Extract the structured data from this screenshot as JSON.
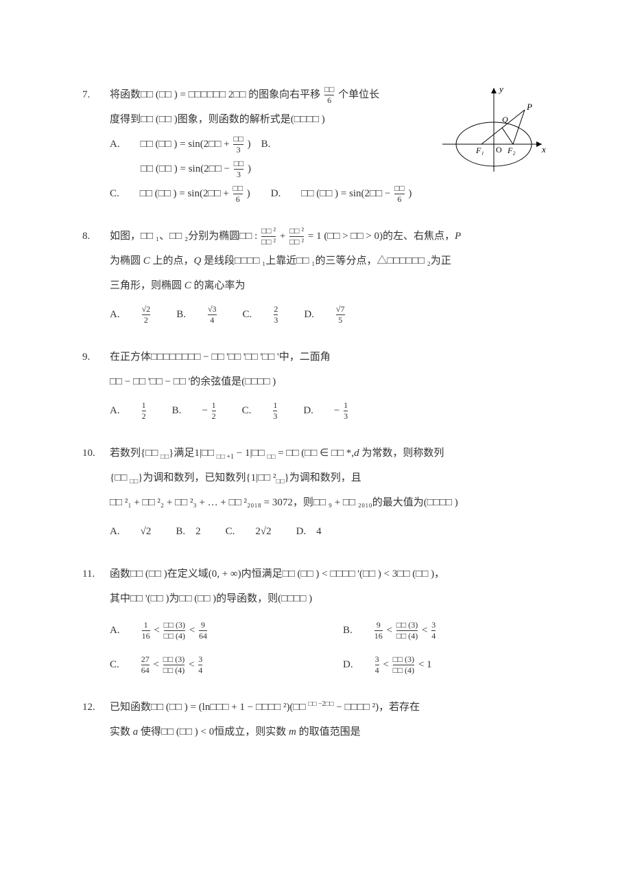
{
  "colors": {
    "text": "#333333",
    "bg": "#ffffff",
    "stroke": "#000000"
  },
  "figure": {
    "axis_labels": {
      "x": "x",
      "y": "y"
    },
    "points": {
      "O": "O",
      "F1": "F₁",
      "F2": "F₂",
      "P": "P",
      "Q": "Q"
    }
  },
  "questions": [
    {
      "num": "7.",
      "lines": [
        "将函数□□ (□□ ) = □□□□□□ 2□□ 的图象向右平移 <frac>□□|6</frac> 个单位长",
        "度得到□□ (□□ )图象，则函数的解析式是(□□□□ )"
      ],
      "options_block": [
        "A.&emsp;&emsp;□□ (□□ ) = sin(2□□  + <frac>□□|3</frac> )&emsp;B.",
        "&emsp;&emsp;&emsp;□□ (□□ ) = sin(2□□  − <frac>□□|3</frac> )",
        "C.&emsp;&emsp;□□ (□□ ) = sin(2□□  + <frac>□□|6</frac> )&emsp;&emsp;D.&emsp;&emsp;□□ (□□ ) = sin(2□□  − <frac>□□|6</frac> )"
      ],
      "has_figure": true
    },
    {
      "num": "8.",
      "lines": [
        "如图，□□ ₁、□□ ₂分别为椭圆□□ : <frac>□□ ²|□□ ²</frac> + <frac>□□ ²|□□ ²</frac> = 1 (□□  > □□  > 0)的左、右焦点，<i>P</i>",
        "为椭圆 <i>C</i> 上的点，<i>Q</i> 是线段□□□□ ₁上靠近□□ ₁的三等分点，△□□□□□□ ₂为正",
        "三角形，则椭圆 <i>C</i> 的离心率为"
      ],
      "options_inline": [
        "A.&emsp;&emsp;<frac>√2|2</frac>",
        "B.&emsp;&emsp;<frac>√3|4</frac>",
        "C.&emsp;&emsp;<frac>2|3</frac>",
        "D.&emsp;&emsp;<frac>√7|5</frac>"
      ]
    },
    {
      "num": "9.",
      "lines": [
        "在正方体□□□□□□□□ − □□ '□□ '□□ '□□ '中，二面角",
        "□□ − □□ '□□ − □□ '的余弦值是(□□□□ )"
      ],
      "options_inline": [
        "A.&emsp;&emsp;<frac>1|2</frac>",
        "B.&emsp;&emsp;− <frac>1|2</frac>",
        "C.&emsp;&emsp;<frac>1|3</frac>",
        "D.&emsp;&emsp;− <frac>1|3</frac>"
      ]
    },
    {
      "num": "10.",
      "lines": [
        "若数列{□□ <sub>□□</sub>}满足<frac>1|□□ <sub>□□ +1</sub></frac> − <frac>1|□□ <sub>□□</sub></frac> = □□ (□□  ∈ □□ *,<i>d</i> 为常数，则称数列",
        "{□□ <sub>□□</sub>}为调和数列，已知数列{<frac>1|□□ ²<sub>□□</sub></frac>}为调和数列，且",
        "□□ ²₁ + □□ ²₂ + □□ ²₃ + … + □□ ²₂₀₁₈ = 3072，则□□ ₉ + □□ ₂₀₁₀的最大值为(□□□□ )"
      ],
      "options_inline": [
        "A.&emsp;&emsp;√2",
        "B.&emsp;2",
        "C.&emsp;&emsp;2√2",
        "D.&emsp;4"
      ]
    },
    {
      "num": "11.",
      "lines": [
        "函数□□ (□□ )在定义域(0, + ∞)内恒满足□□ (□□ ) < □□□□ '(□□ ) < 3□□ (□□ )，",
        "其中□□ '(□□ )为□□ (□□ )的导函数，则(□□□□ )"
      ],
      "options_2x2": [
        "A.&emsp;&emsp;<frac>1|16</frac> < <frac>□□ (3)|□□ (4)</frac> < <frac>9|64</frac>",
        "B.&emsp;&emsp;<frac>9|16</frac> < <frac>□□ (3)|□□ (4)</frac> < <frac>3|4</frac>",
        "C.&emsp;&emsp;<frac>27|64</frac> < <frac>□□ (3)|□□ (4)</frac> < <frac>3|4</frac>",
        "D.&emsp;&emsp;<frac>3|4</frac> < <frac>□□ (3)|□□ (4)</frac> < 1"
      ]
    },
    {
      "num": "12.",
      "lines": [
        "已知函数□□ (□□ ) = (ln□□□  + 1 − □□□□ ²)(□□ <sup>□□ −2□□</sup> − □□□□ ²)，若存在",
        "实数 <i>a</i> 使得□□ (□□ ) < 0恒成立，则实数 <i>m</i> 的取值范围是"
      ]
    }
  ]
}
